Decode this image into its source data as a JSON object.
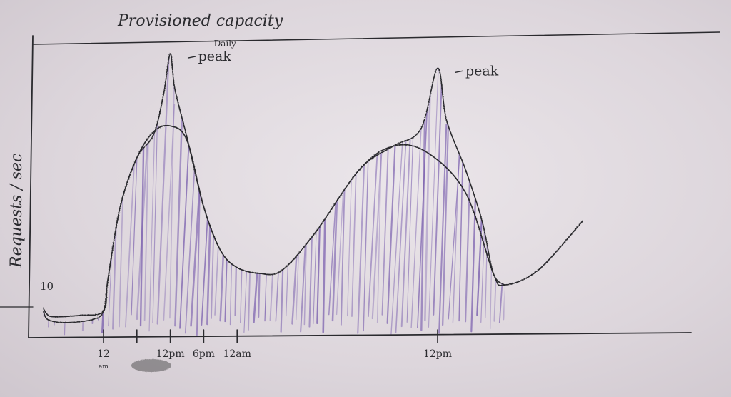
{
  "chart_data": {
    "type": "area",
    "title": "Provisioned capacity",
    "ylabel": "Requests / sec",
    "xlabel": "",
    "y_tick": "10",
    "x_ticks": [
      {
        "label": "12",
        "sublabel": "am",
        "x": 0
      },
      {
        "label": "",
        "sublabel": "",
        "x": 3
      },
      {
        "label": "12pm",
        "sublabel": "",
        "x": 6
      },
      {
        "label": "6pm",
        "sublabel": "",
        "x": 9
      },
      {
        "label": "12am",
        "sublabel": "",
        "x": 12
      },
      {
        "label": "12pm",
        "sublabel": "",
        "x": 30
      }
    ],
    "provisioned_capacity": [
      {
        "x": -5.4,
        "y": 10
      },
      {
        "x": -5.1,
        "y": 8
      },
      {
        "x": -4.5,
        "y": 7
      },
      {
        "x": -2.0,
        "y": 7.5
      },
      {
        "x": 0,
        "y": 9
      },
      {
        "x": 0.4,
        "y": 20
      },
      {
        "x": 1.5,
        "y": 45
      },
      {
        "x": 3.0,
        "y": 62
      },
      {
        "x": 4.5,
        "y": 71
      },
      {
        "x": 6.0,
        "y": 73
      },
      {
        "x": 7.5,
        "y": 68
      },
      {
        "x": 9.0,
        "y": 45
      },
      {
        "x": 10.5,
        "y": 30
      },
      {
        "x": 12.0,
        "y": 24
      },
      {
        "x": 14.0,
        "y": 22
      },
      {
        "x": 16.0,
        "y": 23
      },
      {
        "x": 19.0,
        "y": 36
      },
      {
        "x": 23.0,
        "y": 58
      },
      {
        "x": 26.0,
        "y": 66
      },
      {
        "x": 29.0,
        "y": 64
      },
      {
        "x": 32.5,
        "y": 50
      },
      {
        "x": 35.0,
        "y": 22
      },
      {
        "x": 36.0,
        "y": 18
      },
      {
        "x": 39.0,
        "y": 23
      },
      {
        "x": 43.0,
        "y": 40
      }
    ],
    "demand": [
      {
        "x": -5.4,
        "y": 9
      },
      {
        "x": -5.0,
        "y": 6
      },
      {
        "x": -3.5,
        "y": 5
      },
      {
        "x": -1.0,
        "y": 6
      },
      {
        "x": 0,
        "y": 9
      },
      {
        "x": 0.4,
        "y": 20
      },
      {
        "x": 1.5,
        "y": 45
      },
      {
        "x": 3.0,
        "y": 62
      },
      {
        "x": 4.5,
        "y": 70
      },
      {
        "x": 5.4,
        "y": 84
      },
      {
        "x": 6.0,
        "y": 98
      },
      {
        "x": 6.4,
        "y": 86
      },
      {
        "x": 7.5,
        "y": 69
      },
      {
        "x": 9.0,
        "y": 45
      },
      {
        "x": 10.5,
        "y": 30
      },
      {
        "x": 12.0,
        "y": 24
      },
      {
        "x": 14.0,
        "y": 22
      },
      {
        "x": 16.0,
        "y": 23
      },
      {
        "x": 19.0,
        "y": 36
      },
      {
        "x": 23.0,
        "y": 58
      },
      {
        "x": 26.0,
        "y": 66
      },
      {
        "x": 28.5,
        "y": 72
      },
      {
        "x": 30.0,
        "y": 93
      },
      {
        "x": 30.8,
        "y": 75
      },
      {
        "x": 32.5,
        "y": 58
      },
      {
        "x": 34.0,
        "y": 40
      },
      {
        "x": 35.0,
        "y": 22
      },
      {
        "x": 36.0,
        "y": 18
      }
    ],
    "annotations": [
      {
        "text_line1": "Daily",
        "text_line2": "peak",
        "x": 6.0,
        "y": 98
      },
      {
        "text_line1": "",
        "text_line2": "peak",
        "x": 30.0,
        "y": 93
      }
    ],
    "xlim": [
      -5.6,
      43.5
    ],
    "ylim": [
      0,
      120
    ],
    "grid": false,
    "colors": {
      "ink": "#2a2a2e",
      "demand_fill": "#7a5fae"
    }
  }
}
